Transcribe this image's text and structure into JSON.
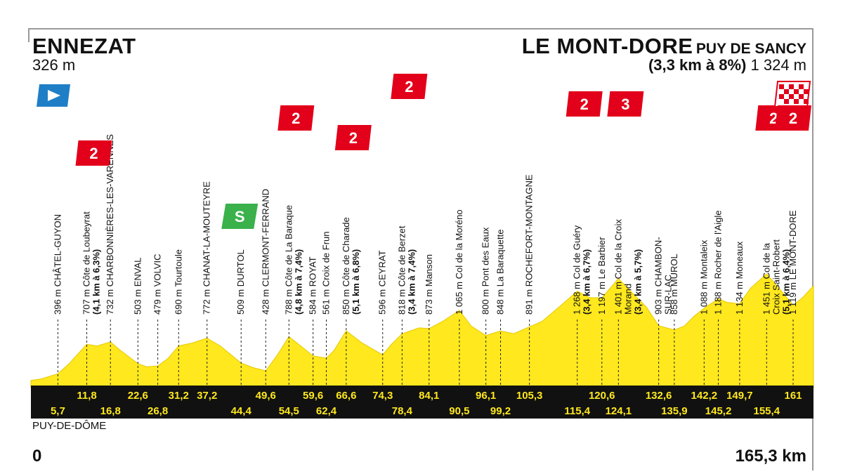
{
  "start": {
    "name": "ENNEZAT",
    "altitude": "326 m"
  },
  "finish": {
    "name": "LE MONT-DORE",
    "name_suffix": "PUY DE SANCY",
    "climb": "(3,3 km à 8%)",
    "altitude": "1 324 m"
  },
  "region": "PUY-DE-DÔME",
  "distance_start": "0",
  "distance_end": "165,3 km",
  "colors": {
    "profile_fill": "#ffe81e",
    "band": "#111111",
    "band_text": "#ffe81e",
    "climb_badge": "#e2001a",
    "sprint_badge": "#3ab14a",
    "start_flag": "#1f7fc6"
  },
  "chart_data": {
    "type": "area",
    "x_range_km": [
      0,
      165.3
    ],
    "profile_km": [
      0,
      2,
      5.7,
      8,
      11.8,
      14,
      16.8,
      19,
      22.6,
      24.5,
      26.8,
      29,
      31.2,
      34,
      37.2,
      40,
      44.4,
      47,
      49.6,
      52,
      54.5,
      57,
      59.6,
      62.4,
      64,
      66.6,
      70,
      74.3,
      76,
      78.4,
      82,
      84.1,
      87,
      90.5,
      93,
      96.1,
      99.2,
      102,
      105.3,
      108,
      112,
      115.4,
      118,
      120.6,
      124.1,
      127,
      130,
      132.6,
      135.9,
      138,
      140,
      142.2,
      145.2,
      147,
      149.7,
      152,
      155.4,
      158,
      161,
      163,
      165.3
    ],
    "profile_alt": [
      326,
      340,
      396,
      500,
      707,
      690,
      732,
      640,
      503,
      470,
      479,
      560,
      690,
      720,
      772,
      690,
      509,
      460,
      428,
      590,
      788,
      690,
      584,
      561,
      640,
      850,
      720,
      596,
      700,
      818,
      880,
      873,
      950,
      1065,
      900,
      800,
      848,
      820,
      891,
      950,
      1120,
      1268,
      1200,
      1197,
      1401,
      1250,
      1100,
      903,
      858,
      900,
      1000,
      1088,
      1188,
      1150,
      1134,
      1300,
      1451,
      1300,
      1119,
      1200,
      1324
    ],
    "points": [
      {
        "km": 5.7,
        "label": "396 m CHÂTEL-GUYON"
      },
      {
        "km": 11.8,
        "label": "707 m Côte de Loubeyrat",
        "climb": "(4,1 km à 6,3%)",
        "category": "2"
      },
      {
        "km": 16.8,
        "label": "732 m CHARBONNIÈRES-LES-VARENNES"
      },
      {
        "km": 22.6,
        "label": "503 m ENVAL"
      },
      {
        "km": 26.8,
        "label": "479 m VOLVIC"
      },
      {
        "km": 31.2,
        "label": "690 m Tourtoule"
      },
      {
        "km": 37.2,
        "label": "772 m CHANAT-LA-MOUTEYRE"
      },
      {
        "km": 44.4,
        "label": "509 m DURTOL",
        "sprint": "S"
      },
      {
        "km": 49.6,
        "label": "428 m CLERMONT-FERRAND"
      },
      {
        "km": 54.5,
        "label": "788 m Côte de La Baraque",
        "climb": "(4,8 km à 7,4%)",
        "category": "2"
      },
      {
        "km": 59.6,
        "label": "584 m ROYAT"
      },
      {
        "km": 62.4,
        "label": "561 m Croix de Frun"
      },
      {
        "km": 66.6,
        "label": "850 m Côte de Charade",
        "climb": "(5,1 km à 6,8%)",
        "category": "2"
      },
      {
        "km": 74.3,
        "label": "596 m CEYRAT"
      },
      {
        "km": 78.4,
        "label": "818 m Côte de Berzet",
        "climb": "(3,4 km à 7,4%)",
        "category": "2"
      },
      {
        "km": 84.1,
        "label": "873 m Manson"
      },
      {
        "km": 90.5,
        "label": "1 065 m Col de la Moréno"
      },
      {
        "km": 96.1,
        "label": "800 m Pont des Eaux"
      },
      {
        "km": 99.2,
        "label": "848 m La Baraquette"
      },
      {
        "km": 105.3,
        "label": "891 m ROCHEFORT-MONTAGNE"
      },
      {
        "km": 115.4,
        "label": "1 268 m Col de Guéry",
        "climb": "(3,4 km à 6,7%)",
        "category": "2"
      },
      {
        "km": 120.6,
        "label": "1 197 m Le Barbier"
      },
      {
        "km": 124.1,
        "label": "1 401 m Col de la Croix",
        "label2": "Morand",
        "climb": "(3,4 km à 5,7%)",
        "category": "3"
      },
      {
        "km": 132.6,
        "label": "903 m CHAMBON-",
        "label2": "SUR-LAC"
      },
      {
        "km": 135.9,
        "label": "858 m MUROL"
      },
      {
        "km": 142.2,
        "label": "1 088 m Montaleix"
      },
      {
        "km": 145.2,
        "label": "1 188 m Rocher de l'Aigle"
      },
      {
        "km": 149.7,
        "label": "1 134 m Moneaux"
      },
      {
        "km": 155.4,
        "label": "1 451 m Col de la",
        "label2": "Croix Saint-Robert",
        "climb": "(5,1 km à 6,4%)",
        "category": "2"
      },
      {
        "km": 161,
        "label": "1 119 m LE MONT-DORE"
      }
    ],
    "band_top": [
      "11,8",
      "22,6",
      "31,2",
      "37,2",
      "49,6",
      "59,6",
      "66,6",
      "74,3",
      "84,1",
      "96,1",
      "105,3",
      "120,6",
      "132,6",
      "142,2",
      "149,7",
      "161"
    ],
    "band_bottom": [
      "5,7",
      "16,8",
      "26,8",
      "44,4",
      "54,5",
      "62,4",
      "78,4",
      "90,5",
      "99,2",
      "115,4",
      "124,1",
      "135,9",
      "145,2",
      "155,4"
    ],
    "finish_category": "2"
  }
}
